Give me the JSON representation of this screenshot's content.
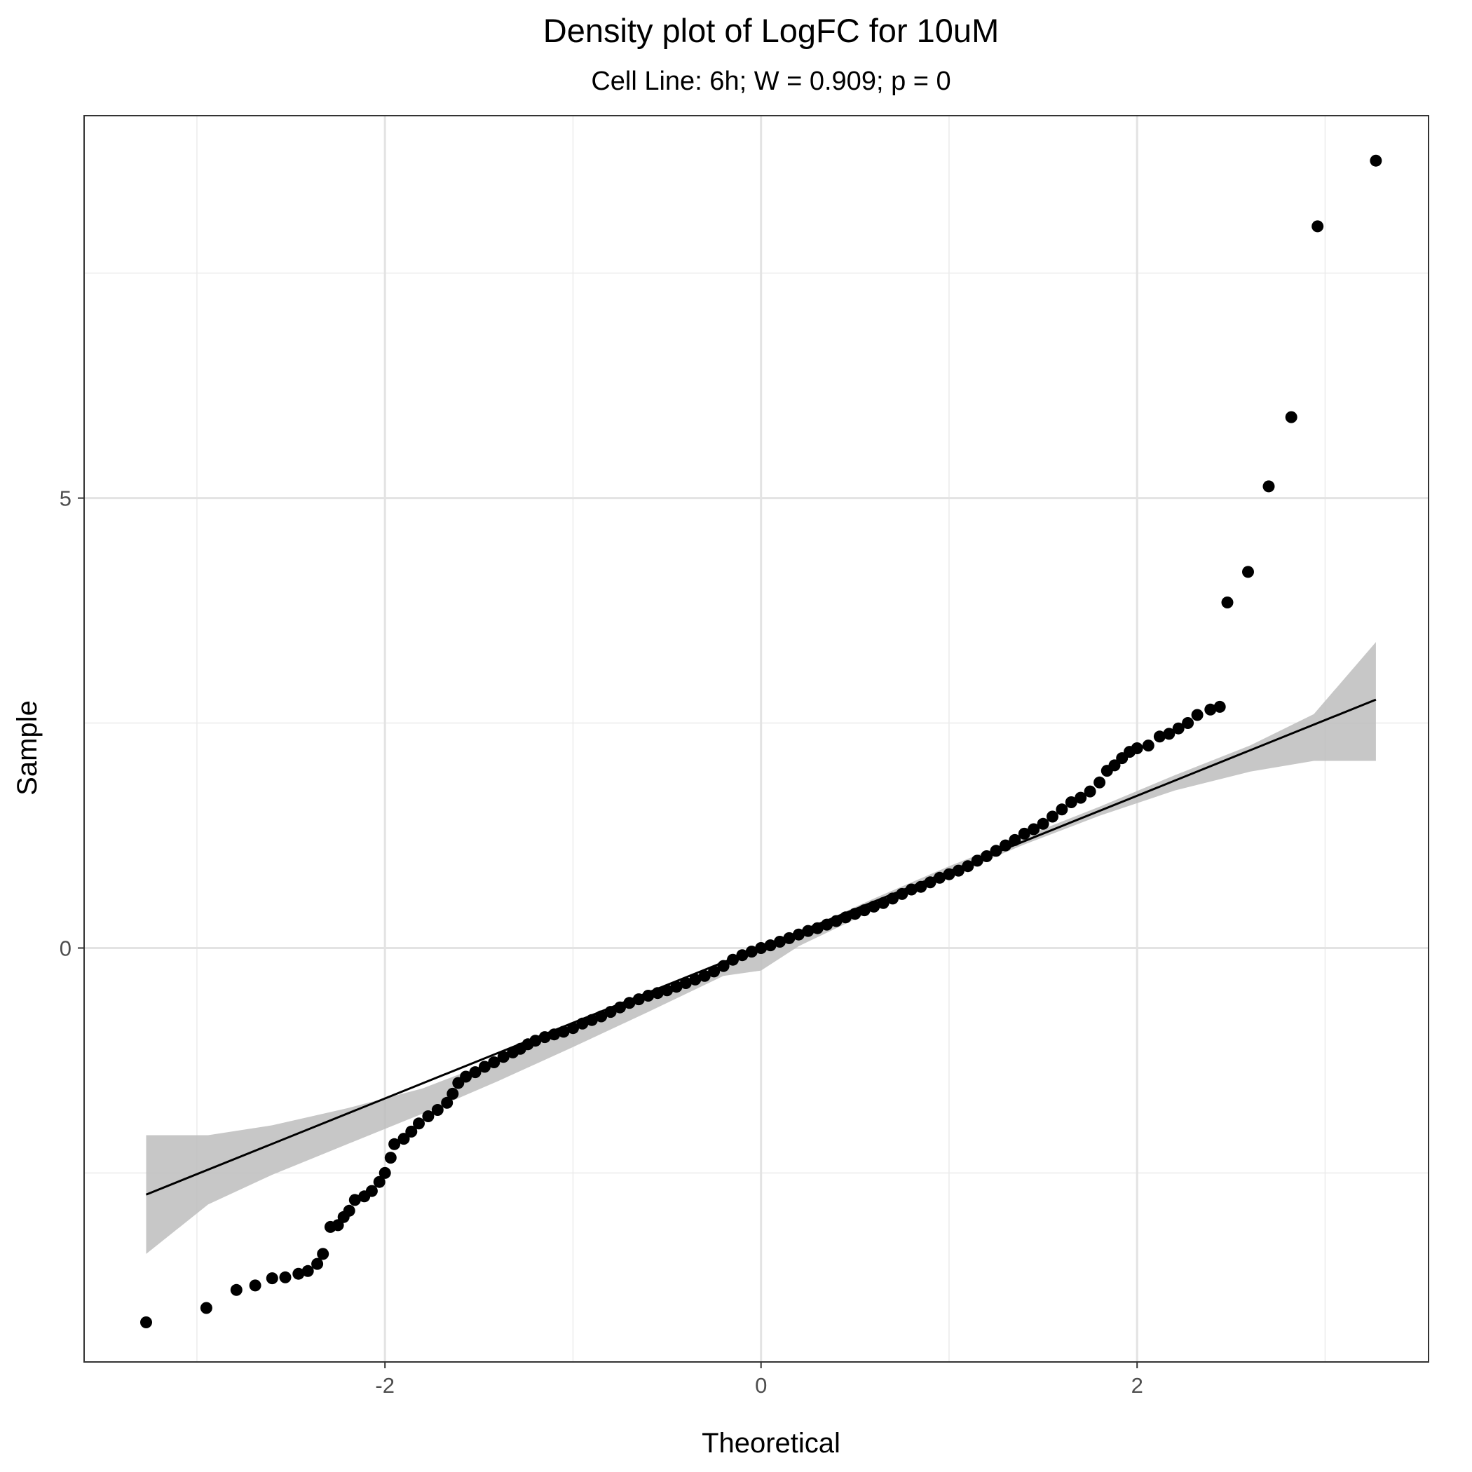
{
  "chart_data": {
    "type": "scatter",
    "title": "Density plot of LogFC for 10uM",
    "subtitle": "Cell Line: 6h; W = 0.909; p = 0",
    "xlabel": "Theoretical",
    "ylabel": "Sample",
    "xlim": [
      -3.6,
      3.55
    ],
    "ylim": [
      -4.6,
      9.25
    ],
    "x_ticks": [
      -2,
      0,
      2
    ],
    "x_tick_labels": [
      "-2",
      "0",
      "2"
    ],
    "y_ticks": [
      0,
      5
    ],
    "y_tick_labels": [
      "0",
      "5"
    ],
    "x_minor_gridlines": [
      -3,
      -1,
      1,
      3
    ],
    "y_minor_gridlines": [
      -2.5,
      2.5,
      7.5
    ],
    "grid": true,
    "legend": "none",
    "point_color": "#000000",
    "reference_line": {
      "x": [
        -3.27,
        3.27
      ],
      "y": [
        -2.74,
        2.76
      ],
      "color": "#000000"
    },
    "confidence_band": {
      "color": "#bdbdbd",
      "x": [
        -3.27,
        -2.94,
        -2.6,
        -2.2,
        -1.8,
        -1.4,
        -1.0,
        -0.6,
        -0.2,
        0.0,
        0.2,
        0.6,
        1.0,
        1.4,
        1.8,
        2.2,
        2.6,
        2.94,
        3.27
      ],
      "upper": [
        -2.08,
        -2.08,
        -1.97,
        -1.78,
        -1.56,
        -1.24,
        -0.91,
        -0.55,
        -0.17,
        0.0,
        0.17,
        0.55,
        0.91,
        1.24,
        1.57,
        1.92,
        2.25,
        2.6,
        3.4
      ],
      "lower": [
        -3.4,
        -2.85,
        -2.52,
        -2.18,
        -1.84,
        -1.48,
        -1.1,
        -0.71,
        -0.31,
        -0.25,
        0.02,
        0.42,
        0.8,
        1.15,
        1.47,
        1.75,
        1.96,
        2.08,
        2.08
      ]
    },
    "points": [
      [
        -3.27,
        -4.16
      ],
      [
        -2.95,
        -4.0
      ],
      [
        -2.79,
        -3.8
      ],
      [
        -2.69,
        -3.75
      ],
      [
        -2.6,
        -3.67
      ],
      [
        -2.53,
        -3.66
      ],
      [
        -2.46,
        -3.62
      ],
      [
        -2.41,
        -3.59
      ],
      [
        -2.36,
        -3.51
      ],
      [
        -2.33,
        -3.4
      ],
      [
        -2.29,
        -3.1
      ],
      [
        -2.25,
        -3.08
      ],
      [
        -2.22,
        -2.99
      ],
      [
        -2.19,
        -2.92
      ],
      [
        -2.16,
        -2.8
      ],
      [
        -2.11,
        -2.76
      ],
      [
        -2.07,
        -2.7
      ],
      [
        -2.03,
        -2.6
      ],
      [
        -2.0,
        -2.5
      ],
      [
        -1.97,
        -2.33
      ],
      [
        -1.95,
        -2.18
      ],
      [
        -1.9,
        -2.12
      ],
      [
        -1.86,
        -2.04
      ],
      [
        -1.82,
        -1.95
      ],
      [
        -1.77,
        -1.87
      ],
      [
        -1.72,
        -1.8
      ],
      [
        -1.67,
        -1.72
      ],
      [
        -1.64,
        -1.62
      ],
      [
        -1.61,
        -1.5
      ],
      [
        -1.57,
        -1.43
      ],
      [
        -1.52,
        -1.38
      ],
      [
        -1.47,
        -1.32
      ],
      [
        -1.42,
        -1.27
      ],
      [
        -1.37,
        -1.21
      ],
      [
        -1.32,
        -1.16
      ],
      [
        -1.28,
        -1.12
      ],
      [
        -1.24,
        -1.07
      ],
      [
        -1.2,
        -1.03
      ],
      [
        -1.15,
        -0.99
      ],
      [
        -1.1,
        -0.96
      ],
      [
        -1.05,
        -0.93
      ],
      [
        -1.0,
        -0.89
      ],
      [
        -0.95,
        -0.84
      ],
      [
        -0.9,
        -0.8
      ],
      [
        -0.85,
        -0.76
      ],
      [
        -0.8,
        -0.71
      ],
      [
        -0.75,
        -0.66
      ],
      [
        -0.7,
        -0.61
      ],
      [
        -0.65,
        -0.57
      ],
      [
        -0.6,
        -0.53
      ],
      [
        -0.55,
        -0.5
      ],
      [
        -0.5,
        -0.47
      ],
      [
        -0.45,
        -0.43
      ],
      [
        -0.4,
        -0.39
      ],
      [
        -0.35,
        -0.35
      ],
      [
        -0.3,
        -0.31
      ],
      [
        -0.25,
        -0.26
      ],
      [
        -0.2,
        -0.2
      ],
      [
        -0.15,
        -0.13
      ],
      [
        -0.1,
        -0.08
      ],
      [
        -0.05,
        -0.04
      ],
      [
        0.0,
        0.0
      ],
      [
        0.05,
        0.03
      ],
      [
        0.1,
        0.07
      ],
      [
        0.15,
        0.11
      ],
      [
        0.2,
        0.15
      ],
      [
        0.25,
        0.19
      ],
      [
        0.3,
        0.22
      ],
      [
        0.35,
        0.26
      ],
      [
        0.4,
        0.3
      ],
      [
        0.45,
        0.34
      ],
      [
        0.5,
        0.38
      ],
      [
        0.55,
        0.42
      ],
      [
        0.6,
        0.46
      ],
      [
        0.65,
        0.5
      ],
      [
        0.7,
        0.55
      ],
      [
        0.75,
        0.6
      ],
      [
        0.8,
        0.65
      ],
      [
        0.85,
        0.68
      ],
      [
        0.9,
        0.73
      ],
      [
        0.95,
        0.78
      ],
      [
        1.0,
        0.82
      ],
      [
        1.05,
        0.86
      ],
      [
        1.1,
        0.91
      ],
      [
        1.15,
        0.97
      ],
      [
        1.2,
        1.02
      ],
      [
        1.25,
        1.08
      ],
      [
        1.3,
        1.14
      ],
      [
        1.35,
        1.2
      ],
      [
        1.4,
        1.27
      ],
      [
        1.45,
        1.32
      ],
      [
        1.5,
        1.38
      ],
      [
        1.55,
        1.46
      ],
      [
        1.6,
        1.54
      ],
      [
        1.65,
        1.62
      ],
      [
        1.7,
        1.67
      ],
      [
        1.75,
        1.74
      ],
      [
        1.8,
        1.84
      ],
      [
        1.84,
        1.97
      ],
      [
        1.88,
        2.03
      ],
      [
        1.92,
        2.11
      ],
      [
        1.96,
        2.18
      ],
      [
        2.0,
        2.22
      ],
      [
        2.06,
        2.25
      ],
      [
        2.12,
        2.35
      ],
      [
        2.17,
        2.38
      ],
      [
        2.22,
        2.44
      ],
      [
        2.27,
        2.5
      ],
      [
        2.32,
        2.59
      ],
      [
        2.39,
        2.65
      ],
      [
        2.44,
        2.68
      ],
      [
        2.48,
        3.84
      ],
      [
        2.59,
        4.18
      ],
      [
        2.7,
        5.13
      ],
      [
        2.82,
        5.9
      ],
      [
        2.96,
        8.02
      ],
      [
        3.27,
        8.75
      ]
    ]
  }
}
